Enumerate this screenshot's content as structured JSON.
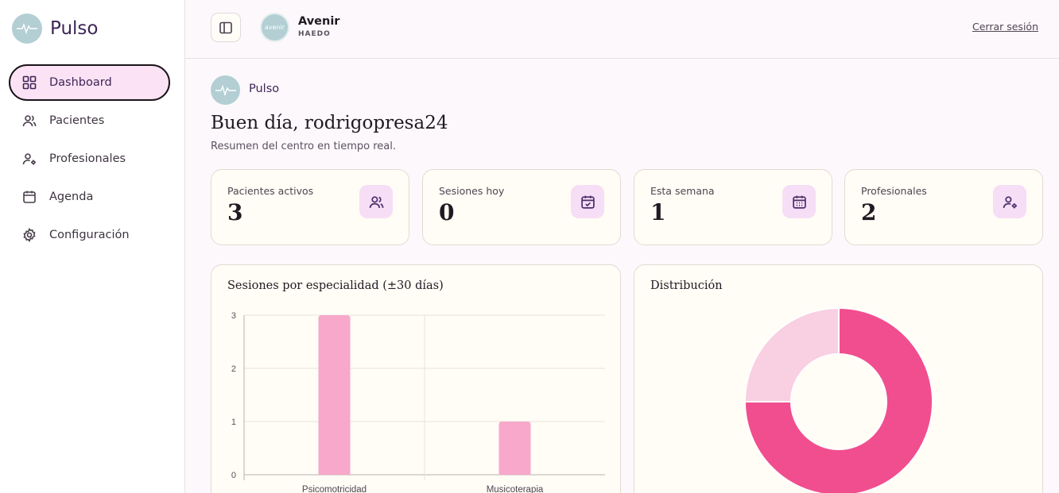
{
  "sidebar": {
    "brand": "Pulso",
    "items": [
      {
        "label": "Dashboard",
        "icon": "grid-icon",
        "active": true
      },
      {
        "label": "Pacientes",
        "icon": "users-icon"
      },
      {
        "label": "Profesionales",
        "icon": "user-cog-icon"
      },
      {
        "label": "Agenda",
        "icon": "calendar-icon"
      },
      {
        "label": "Configuración",
        "icon": "gear-icon"
      }
    ]
  },
  "header": {
    "org_name": "Avenir",
    "org_logo_text": "avenir",
    "org_sub": "HAEDO",
    "logout": "Cerrar sesión"
  },
  "main": {
    "brand": "Pulso",
    "greeting": "Buen día, rodrigopresa24",
    "subtitle": "Resumen del centro en tiempo real."
  },
  "stats": [
    {
      "label": "Pacientes activos",
      "value": "3",
      "icon": "users-icon"
    },
    {
      "label": "Sesiones hoy",
      "value": "0",
      "icon": "calendar-check-icon"
    },
    {
      "label": "Esta semana",
      "value": "1",
      "icon": "calendar-grid-icon"
    },
    {
      "label": "Profesionales",
      "value": "2",
      "icon": "user-cog-icon"
    }
  ],
  "panels": {
    "bar_title": "Sesiones por especialidad (±30 días)",
    "pie_title": "Distribución"
  },
  "colors": {
    "accent": "#3d2656",
    "bar": "#f7a8cb",
    "pie_main": "#f04e8f",
    "pie_light": "#f9cfe2"
  },
  "chart_data": [
    {
      "type": "bar",
      "title": "Sesiones por especialidad (±30 días)",
      "categories": [
        "Psicomotricidad",
        "Musicoterapia"
      ],
      "values": [
        3,
        1
      ],
      "ylim": [
        0,
        3
      ],
      "yticks": [
        0,
        1,
        2,
        3
      ],
      "grid": true
    },
    {
      "type": "pie",
      "title": "Distribución",
      "donut": true,
      "labels": [
        "Psicomotricidad",
        "Musicoterapia"
      ],
      "values": [
        3,
        1
      ]
    }
  ]
}
